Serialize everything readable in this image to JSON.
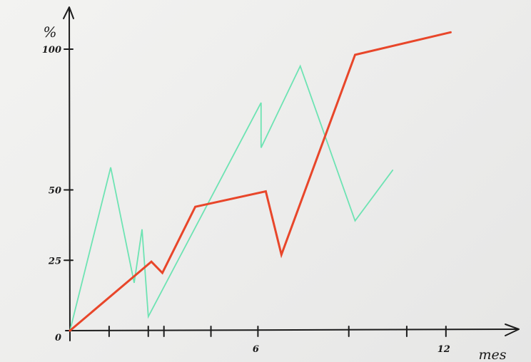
{
  "chart_data": {
    "type": "line",
    "title": "",
    "xlabel": "mes",
    "ylabel": "%",
    "xlim": [
      0,
      14
    ],
    "ylim": [
      0,
      110
    ],
    "x_ticks_labeled": [
      {
        "value": 6,
        "label": "6"
      },
      {
        "value": 12,
        "label": "12"
      }
    ],
    "x_ticks_unlabeled": [
      1.25,
      2.5,
      3,
      4.5,
      8.9,
      10.75
    ],
    "y_ticks": [
      {
        "value": 0,
        "label": "0"
      },
      {
        "value": 25,
        "label": "25"
      },
      {
        "value": 50,
        "label": "50"
      },
      {
        "value": 100,
        "label": "100"
      }
    ],
    "grid": false,
    "legend": "none",
    "series": [
      {
        "color": "#e8462a",
        "stroke_width": 3,
        "points": [
          [
            0,
            0
          ],
          [
            2.6,
            24.5
          ],
          [
            2.95,
            20.5
          ],
          [
            4.0,
            44
          ],
          [
            6.25,
            49.5
          ],
          [
            6.75,
            27
          ],
          [
            9.1,
            98
          ],
          [
            12.15,
            106
          ]
        ]
      },
      {
        "color": "#66e3b0",
        "stroke_width": 1.8,
        "points": [
          [
            0,
            0
          ],
          [
            1.3,
            58
          ],
          [
            2.05,
            17
          ],
          [
            2.3,
            36
          ],
          [
            2.5,
            5
          ],
          [
            6.1,
            81
          ],
          [
            6.1,
            65
          ],
          [
            7.35,
            94
          ],
          [
            9.1,
            39
          ],
          [
            10.3,
            57
          ]
        ]
      }
    ]
  }
}
